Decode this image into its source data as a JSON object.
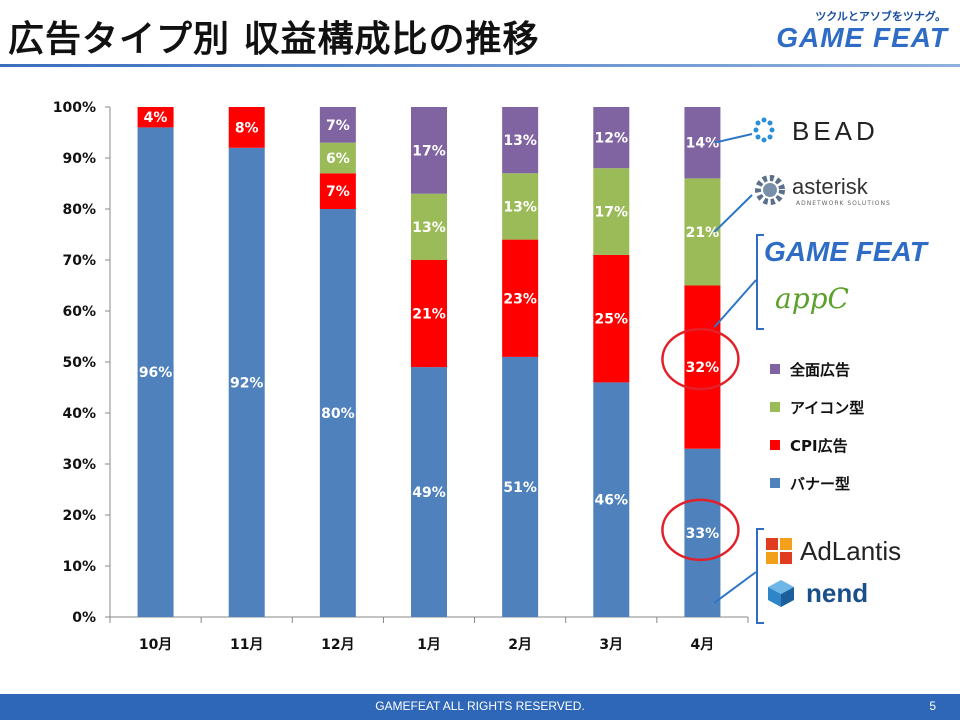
{
  "header": {
    "title": "広告タイプ別 収益構成比の推移",
    "brand_tagline": "ツクルとアソブをツナグ。",
    "brand_logo": "GAME FEAT"
  },
  "chart_data": {
    "type": "bar",
    "stacked": true,
    "categories": [
      "10月",
      "11月",
      "12月",
      "1月",
      "2月",
      "3月",
      "4月"
    ],
    "series": [
      {
        "name": "バナー型",
        "color": "#4f81bd",
        "values": [
          96,
          92,
          80,
          49,
          51,
          46,
          33
        ]
      },
      {
        "name": "CPI広告",
        "color": "#ff0000",
        "values": [
          4,
          8,
          7,
          21,
          23,
          25,
          32
        ]
      },
      {
        "name": "アイコン型",
        "color": "#9bbb59",
        "values": [
          0,
          0,
          6,
          13,
          13,
          17,
          21
        ]
      },
      {
        "name": "全面広告",
        "color": "#8064a2",
        "values": [
          0,
          0,
          7,
          17,
          13,
          12,
          14
        ]
      }
    ],
    "ylim": [
      0,
      100
    ],
    "yticks": [
      "0%",
      "10%",
      "20%",
      "30%",
      "40%",
      "50%",
      "60%",
      "70%",
      "80%",
      "90%",
      "100%"
    ],
    "value_suffix": "%",
    "grid": false,
    "legend_position": "right",
    "legend_order": [
      "全面広告",
      "アイコン型",
      "CPI広告",
      "バナー型"
    ],
    "highlights": [
      "4月 CPI広告 32%",
      "4月 バナー型 33%"
    ]
  },
  "logos": {
    "bead": "BEAD",
    "asterisk": "asterisk",
    "asterisk_sub": "ADNETWORK SOLUTIONS",
    "gamefeat": "GAME FEAT",
    "appc": "appC",
    "adlantis": "AdLantis",
    "nend": "nend"
  },
  "footer": {
    "text": "GAMEFEAT ALL RIGHTS RESERVED.",
    "page_number": "5"
  }
}
